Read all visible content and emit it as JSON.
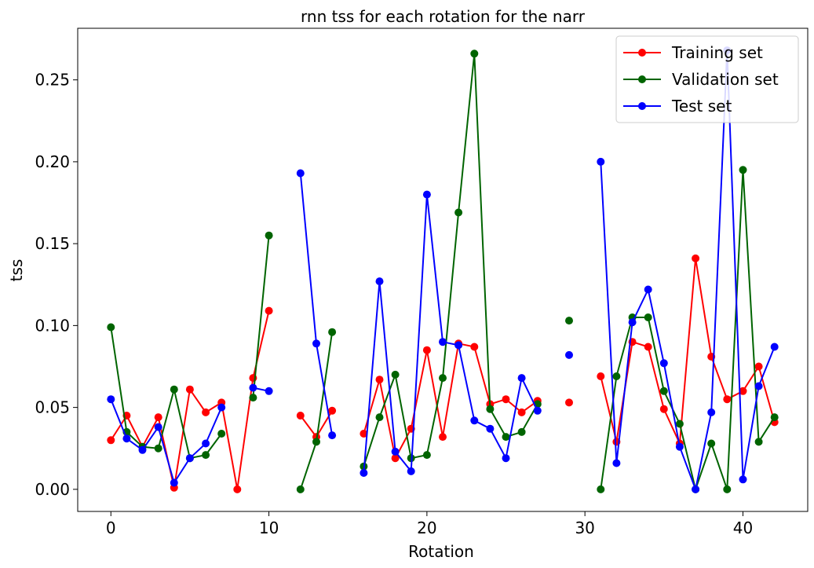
{
  "chart_data": {
    "type": "line",
    "title": "rnn tss for each rotation for the narr",
    "xlabel": "Rotation",
    "ylabel": "tss",
    "xlim": [
      -2.1,
      44.1
    ],
    "ylim": [
      -0.0135,
      0.2815
    ],
    "xticks": [
      0,
      10,
      20,
      30,
      40
    ],
    "xtick_labels": [
      "0",
      "10",
      "20",
      "30",
      "40"
    ],
    "yticks": [
      0.0,
      0.05,
      0.1,
      0.15,
      0.2,
      0.25
    ],
    "ytick_labels": [
      "0.00",
      "0.05",
      "0.10",
      "0.15",
      "0.20",
      "0.25"
    ],
    "grid": false,
    "legend_position": "upper-right",
    "x": [
      0,
      1,
      2,
      3,
      4,
      5,
      6,
      7,
      8,
      9,
      10,
      11,
      12,
      13,
      14,
      15,
      16,
      17,
      18,
      19,
      20,
      21,
      22,
      23,
      24,
      25,
      26,
      27,
      28,
      29,
      30,
      31,
      32,
      33,
      34,
      35,
      36,
      37,
      38,
      39,
      40,
      41,
      42
    ],
    "series": [
      {
        "name": "Training set",
        "color": "#ff0000",
        "values": [
          0.03,
          0.045,
          0.026,
          0.044,
          0.001,
          0.061,
          0.047,
          0.053,
          0.0,
          0.068,
          0.109,
          null,
          0.045,
          0.032,
          0.048,
          null,
          0.034,
          0.067,
          0.019,
          0.037,
          0.085,
          0.032,
          0.089,
          0.087,
          0.052,
          0.055,
          0.047,
          0.054,
          null,
          0.053,
          null,
          0.069,
          0.029,
          0.09,
          0.087,
          0.049,
          0.028,
          0.141,
          0.081,
          0.055,
          0.06,
          0.075,
          0.041
        ]
      },
      {
        "name": "Validation set",
        "color": "#006400",
        "values": [
          0.099,
          0.035,
          0.026,
          0.025,
          0.061,
          0.019,
          0.021,
          0.034,
          null,
          0.056,
          0.155,
          null,
          0.0,
          0.029,
          0.096,
          null,
          0.014,
          0.044,
          0.07,
          0.019,
          0.021,
          0.068,
          0.169,
          0.266,
          0.049,
          0.032,
          0.035,
          0.052,
          null,
          0.103,
          null,
          0.0,
          0.069,
          0.105,
          0.105,
          0.06,
          0.04,
          0.0,
          0.028,
          0.0,
          0.195,
          0.029,
          0.044
        ]
      },
      {
        "name": "Test set",
        "color": "#0000ff",
        "values": [
          0.055,
          0.031,
          0.024,
          0.038,
          0.004,
          0.019,
          0.028,
          0.05,
          null,
          0.062,
          0.06,
          null,
          0.193,
          0.089,
          0.033,
          null,
          0.01,
          0.127,
          0.023,
          0.011,
          0.18,
          0.09,
          0.088,
          0.042,
          0.037,
          0.019,
          0.068,
          0.048,
          null,
          0.082,
          null,
          0.2,
          0.016,
          0.102,
          0.122,
          0.077,
          0.026,
          0.0,
          0.047,
          0.268,
          0.006,
          0.063,
          0.087
        ]
      }
    ]
  }
}
